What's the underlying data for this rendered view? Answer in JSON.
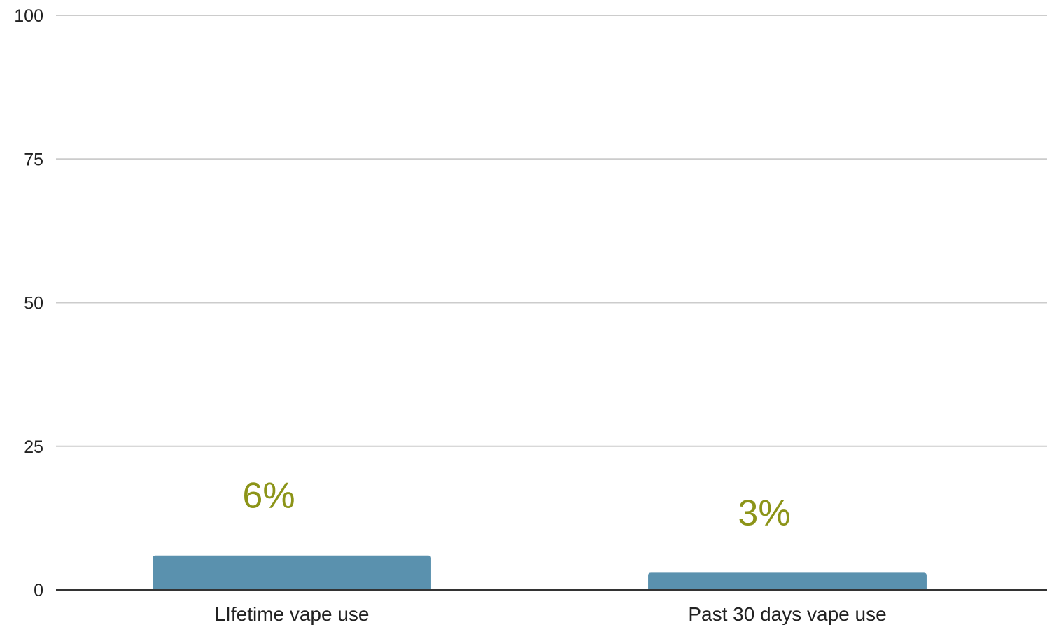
{
  "chart_data": {
    "type": "bar",
    "categories": [
      "LIfetime vape use",
      "Past 30 days vape use"
    ],
    "values": [
      6,
      3
    ],
    "data_labels": [
      "6%",
      "3%"
    ],
    "title": "",
    "xlabel": "",
    "ylabel": "",
    "ylim": [
      0,
      100
    ],
    "yticks": [
      "0",
      "25",
      "50",
      "75",
      "100"
    ],
    "grid": true,
    "legend": "none",
    "colors": {
      "bar": "#5a91ae",
      "data_label": "#8c9418",
      "gridline": "#cccccc",
      "baseline": "#333333"
    }
  }
}
